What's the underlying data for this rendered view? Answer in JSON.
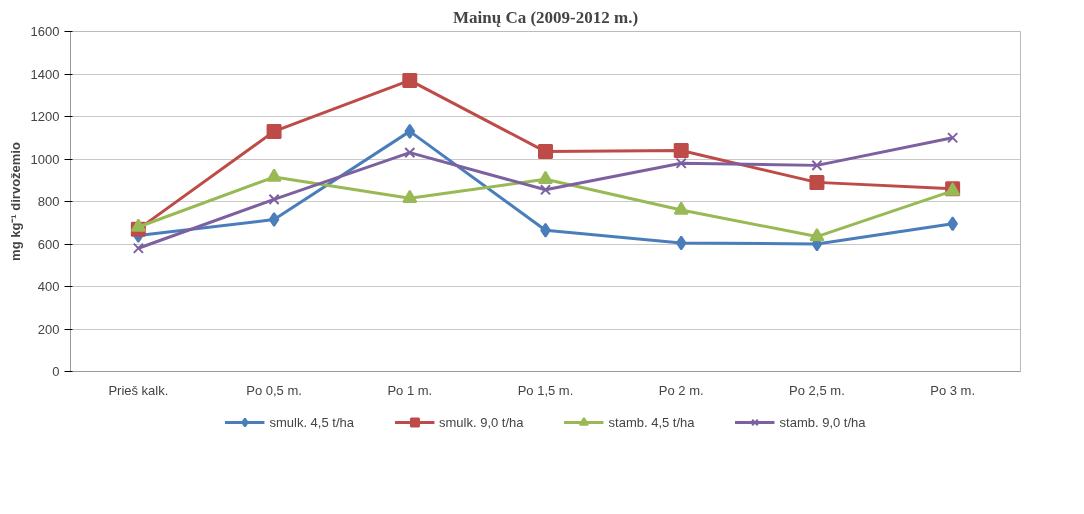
{
  "chart_data": {
    "type": "line",
    "title": "Mainų Ca (2009-2012 m.)",
    "ylabel": "mg kg⁻¹ dirvožemio",
    "categories": [
      "Prieš kalk.",
      "Po 0,5 m.",
      "Po 1 m.",
      "Po 1,5 m.",
      "Po 2 m.",
      "Po 2,5 m.",
      "Po 3 m."
    ],
    "series": [
      {
        "name": "smulk. 4,5 t/ha",
        "color": "#4a7ebb",
        "marker": "diamond",
        "values": [
          640,
          715,
          1130,
          665,
          605,
          600,
          695
        ]
      },
      {
        "name": "smulk. 9,0 t/ha",
        "color": "#be4b48",
        "marker": "square",
        "values": [
          670,
          1130,
          1370,
          1035,
          1040,
          890,
          860
        ]
      },
      {
        "name": "stamb. 4,5 t/ha",
        "color": "#98b954",
        "marker": "triangle",
        "values": [
          680,
          915,
          815,
          905,
          760,
          635,
          850
        ]
      },
      {
        "name": "stamb. 9,0 t/ha",
        "color": "#7d60a0",
        "marker": "cross",
        "values": [
          580,
          810,
          1030,
          855,
          980,
          970,
          1100
        ]
      }
    ],
    "ylim": [
      0,
      1600
    ],
    "yticks": [
      0,
      200,
      400,
      600,
      800,
      1000,
      1200,
      1400,
      1600
    ],
    "grid": "y",
    "legend": "bottom",
    "line_style": "solid"
  }
}
